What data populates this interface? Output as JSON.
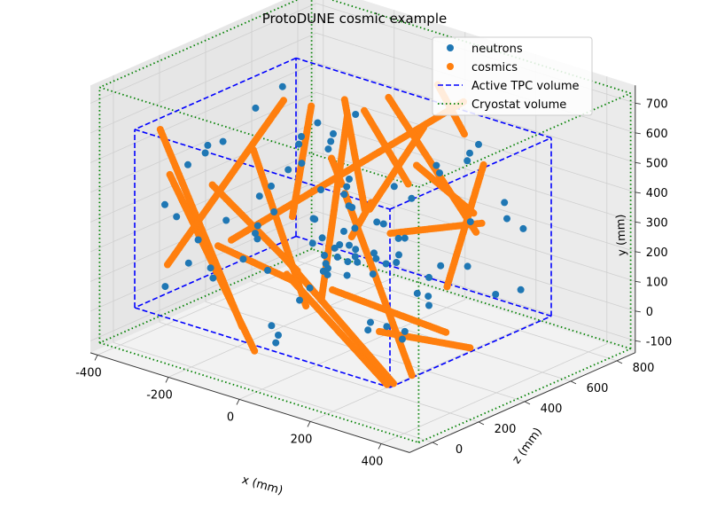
{
  "chart_data": {
    "type": "scatter",
    "projection": "3d",
    "title": "ProtoDUNE cosmic example",
    "xlabel": "x (mm)",
    "ylabel": "z (mm)",
    "zlabel": "y (mm)",
    "axis_order_note": "horizontal axes: x (mm) and z (mm); vertical axis: y (mm)",
    "xlim": [
      -420,
      480
    ],
    "zlim": [
      -100,
      880
    ],
    "ylim": [
      -140,
      760
    ],
    "x_ticks": [
      "-400",
      "-200",
      "0",
      "200",
      "400"
    ],
    "z_ticks": [
      "0",
      "200",
      "400",
      "600",
      "800"
    ],
    "y_ticks": [
      "-100",
      "0",
      "100",
      "200",
      "300",
      "400",
      "500",
      "600",
      "700"
    ],
    "grid": true,
    "legend_position": "top-right",
    "legend": [
      {
        "label": "neutrons",
        "kind": "marker",
        "color": "#1f77b4"
      },
      {
        "label": "cosmics",
        "kind": "marker",
        "color": "#ff7f0e"
      },
      {
        "label": "Active TPC volume",
        "kind": "dashed-line",
        "color": "#0000ff"
      },
      {
        "label": "Cryostat volume",
        "kind": "dotted-line",
        "color": "#008000"
      }
    ],
    "active_tpc_volume": {
      "x": [
        -360,
        360
      ],
      "y": [
        0,
        600
      ],
      "z": [
        0,
        700
      ]
    },
    "cryostat_volume": {
      "x": [
        -420,
        480
      ],
      "y": [
        -120,
        740
      ],
      "z": [
        -60,
        860
      ]
    },
    "series": [
      {
        "name": "cosmics",
        "color": "#ff7f0e",
        "segments": [
          [
            [
              -340,
              580,
              80
            ],
            [
              -200,
              -80,
              220
            ]
          ],
          [
            [
              -300,
              450,
              60
            ],
            [
              -100,
              -90,
              120
            ]
          ],
          [
            [
              -220,
              480,
              300
            ],
            [
              -150,
              -60,
              420
            ]
          ],
          [
            [
              -150,
              520,
              600
            ],
            [
              50,
              120,
              180
            ]
          ],
          [
            [
              -120,
              300,
              50
            ],
            [
              80,
              600,
              750
            ]
          ],
          [
            [
              -60,
              600,
              640
            ],
            [
              200,
              250,
              620
            ]
          ],
          [
            [
              -40,
              360,
              420
            ],
            [
              240,
              -100,
              280
            ]
          ],
          [
            [
              40,
              660,
              700
            ],
            [
              180,
              580,
              600
            ]
          ],
          [
            [
              -260,
              300,
              700
            ],
            [
              120,
              540,
              160
            ]
          ],
          [
            [
              -100,
              120,
              260
            ],
            [
              300,
              -40,
              80
            ]
          ],
          [
            [
              60,
              380,
              380
            ],
            [
              200,
              420,
              80
            ]
          ],
          [
            [
              -20,
              260,
              120
            ],
            [
              240,
              -100,
              200
            ]
          ],
          [
            [
              100,
              180,
              150
            ],
            [
              180,
              -60,
              520
            ]
          ],
          [
            [
              180,
              300,
              640
            ],
            [
              240,
              600,
              300
            ]
          ],
          [
            [
              -200,
              560,
              520
            ],
            [
              -240,
              180,
              500
            ]
          ],
          [
            [
              0,
              500,
              700
            ],
            [
              160,
              450,
              220
            ]
          ],
          [
            [
              140,
              320,
              340
            ],
            [
              320,
              380,
              460
            ]
          ],
          [
            [
              -320,
              120,
              300
            ],
            [
              -260,
              -60,
              540
            ]
          ],
          [
            [
              260,
              520,
              560
            ],
            [
              300,
              200,
              340
            ]
          ],
          [
            [
              -180,
              460,
              60
            ],
            [
              60,
              260,
              60
            ]
          ],
          [
            [
              200,
              60,
              200
            ],
            [
              300,
              -40,
              440
            ]
          ],
          [
            [
              -80,
              640,
              480
            ],
            [
              120,
              420,
              260
            ]
          ],
          [
            [
              60,
              700,
              350
            ],
            [
              340,
              640,
              110
            ]
          ],
          [
            [
              -300,
              150,
              50
            ],
            [
              -200,
              620,
              400
            ]
          ]
        ]
      },
      {
        "name": "neutrons",
        "color": "#1f77b4",
        "points": [
          [
            -300,
            80,
            40
          ],
          [
            -260,
            160,
            80
          ],
          [
            -220,
            260,
            60
          ],
          [
            -180,
            320,
            120
          ],
          [
            -340,
            420,
            200
          ],
          [
            -280,
            500,
            260
          ],
          [
            -240,
            600,
            340
          ],
          [
            -200,
            380,
            420
          ],
          [
            -160,
            300,
            500
          ],
          [
            -120,
            240,
            560
          ],
          [
            -80,
            180,
            620
          ],
          [
            -40,
            120,
            680
          ],
          [
            0,
            60,
            40
          ],
          [
            40,
            140,
            100
          ],
          [
            80,
            220,
            160
          ],
          [
            120,
            300,
            220
          ],
          [
            160,
            380,
            280
          ],
          [
            200,
            460,
            340
          ],
          [
            240,
            540,
            400
          ],
          [
            280,
            220,
            460
          ],
          [
            320,
            120,
            520
          ],
          [
            -320,
            560,
            580
          ],
          [
            -260,
            440,
            640
          ],
          [
            -180,
            90,
            300
          ],
          [
            -100,
            40,
            360
          ],
          [
            -20,
            320,
            420
          ],
          [
            60,
            400,
            480
          ],
          [
            140,
            480,
            540
          ],
          [
            220,
            560,
            600
          ],
          [
            300,
            80,
            660
          ],
          [
            -300,
            260,
            500
          ],
          [
            -220,
            160,
            560
          ],
          [
            -140,
            520,
            620
          ],
          [
            -60,
            460,
            80
          ],
          [
            20,
            580,
            140
          ],
          [
            100,
            360,
            200
          ],
          [
            180,
            260,
            260
          ],
          [
            260,
            160,
            320
          ],
          [
            340,
            420,
            380
          ],
          [
            -340,
            20,
            440
          ],
          [
            -20,
            200,
            300
          ],
          [
            10,
            240,
            320
          ],
          [
            30,
            220,
            280
          ],
          [
            50,
            260,
            300
          ],
          [
            0,
            280,
            260
          ],
          [
            20,
            180,
            340
          ],
          [
            -40,
            240,
            280
          ],
          [
            60,
            200,
            320
          ],
          [
            40,
            300,
            340
          ],
          [
            -10,
            160,
            300
          ],
          [
            80,
            240,
            280
          ],
          [
            100,
            220,
            340
          ],
          [
            -60,
            300,
            320
          ],
          [
            120,
            260,
            300
          ],
          [
            -30,
            200,
            360
          ],
          [
            70,
            180,
            260
          ],
          [
            150,
            300,
            360
          ],
          [
            170,
            240,
            320
          ],
          [
            190,
            280,
            300
          ],
          [
            130,
            200,
            280
          ],
          [
            -150,
            260,
            200
          ],
          [
            -130,
            300,
            180
          ],
          [
            -110,
            340,
            220
          ],
          [
            -170,
            220,
            240
          ],
          [
            220,
            100,
            120
          ],
          [
            240,
            140,
            100
          ],
          [
            260,
            120,
            140
          ],
          [
            -250,
            120,
            160
          ],
          [
            -230,
            100,
            140
          ],
          [
            300,
            340,
            600
          ],
          [
            320,
            300,
            640
          ],
          [
            280,
            380,
            620
          ],
          [
            -80,
            520,
            420
          ],
          [
            -60,
            560,
            400
          ],
          [
            -100,
            480,
            440
          ],
          [
            160,
            560,
            120
          ],
          [
            180,
            600,
            100
          ],
          [
            140,
            520,
            140
          ],
          [
            -200,
            560,
            60
          ],
          [
            -180,
            600,
            40
          ],
          [
            260,
            580,
            500
          ],
          [
            240,
            540,
            520
          ],
          [
            -300,
            360,
            620
          ],
          [
            -280,
            400,
            600
          ],
          [
            80,
            60,
            600
          ],
          [
            100,
            100,
            620
          ],
          [
            -120,
            80,
            460
          ],
          [
            -140,
            40,
            480
          ],
          [
            200,
            0,
            300
          ],
          [
            220,
            40,
            280
          ],
          [
            -40,
            -40,
            120
          ],
          [
            -20,
            0,
            100
          ],
          [
            340,
            200,
            200
          ],
          [
            320,
            240,
            180
          ],
          [
            -340,
            320,
            100
          ],
          [
            -320,
            280,
            120
          ]
        ]
      }
    ]
  }
}
